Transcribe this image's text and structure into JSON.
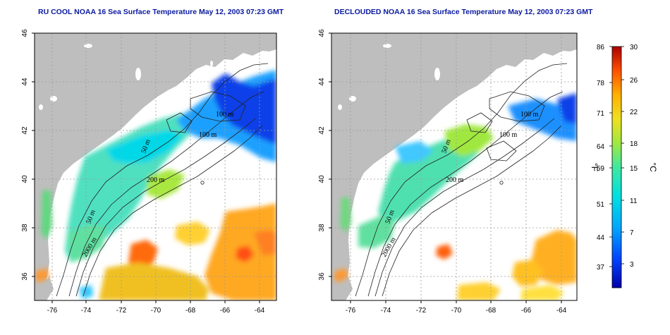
{
  "titles": {
    "left": "RU COOL NOAA 16 Sea Surface Temperature May 12, 2003 07:23 GMT",
    "right": "DECLOUDED NOAA 16 Sea Surface Temperature May 12, 2003 07:23 GMT"
  },
  "axes": {
    "x_ticks": [
      "-76",
      "-74",
      "-72",
      "-70",
      "-68",
      "-66",
      "-64"
    ],
    "y_ticks": [
      "46",
      "44",
      "42",
      "40",
      "38",
      "36"
    ]
  },
  "isobath_labels": {
    "left": [
      "50 m",
      "100 m",
      "200 m",
      "50 m",
      "2000 m",
      "100 m"
    ],
    "right": [
      "50 m",
      "100 m",
      "200 m",
      "50 m",
      "2000 m",
      "100 m"
    ]
  },
  "colorbar": {
    "fahrenheit_label": "°F",
    "celsius_label": "°C",
    "fahrenheit_ticks": [
      "86",
      "78",
      "71",
      "64",
      "59",
      "51",
      "44",
      "37"
    ],
    "celsius_ticks": [
      "30",
      "26",
      "22",
      "18",
      "15",
      "11",
      "7",
      "3"
    ]
  },
  "colors": {
    "land": "#bebebe",
    "title": "#0a1aa0",
    "scale_warm": "#cc0000",
    "scale_cold": "#0000aa"
  }
}
